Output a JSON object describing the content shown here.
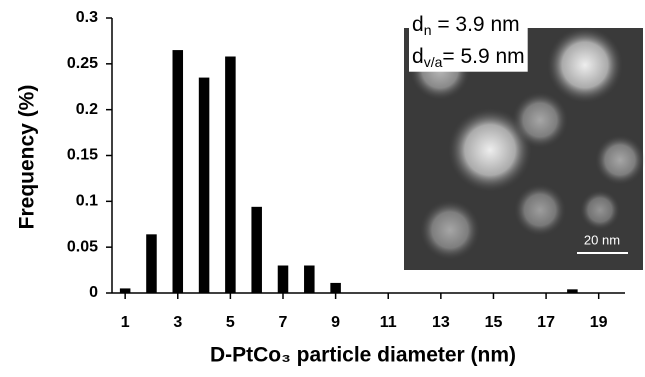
{
  "chart_data": {
    "type": "bar",
    "x": [
      1,
      2,
      3,
      4,
      5,
      6,
      7,
      8,
      9,
      18
    ],
    "values": [
      0.005,
      0.064,
      0.265,
      0.235,
      0.258,
      0.094,
      0.03,
      0.03,
      0.011,
      0.004
    ],
    "color": "#000000",
    "xlim": [
      0.5,
      20
    ],
    "xticks": [
      1,
      3,
      5,
      7,
      9,
      11,
      13,
      15,
      17,
      19
    ],
    "ylim": [
      0,
      0.3
    ],
    "yticks": [
      0,
      0.05,
      0.1,
      0.15,
      0.2,
      0.25,
      0.3
    ],
    "xlabel": "D-PtCo₃ particle diameter (nm)",
    "ylabel": "Frequency (%)",
    "annotations": [
      {
        "main": "d",
        "sub": "n",
        "rest": " = 3.9 nm"
      },
      {
        "main": "d",
        "sub": "v/a",
        "rest": "= 5.9 nm"
      }
    ],
    "inset_scale_bar": "20 nm"
  }
}
